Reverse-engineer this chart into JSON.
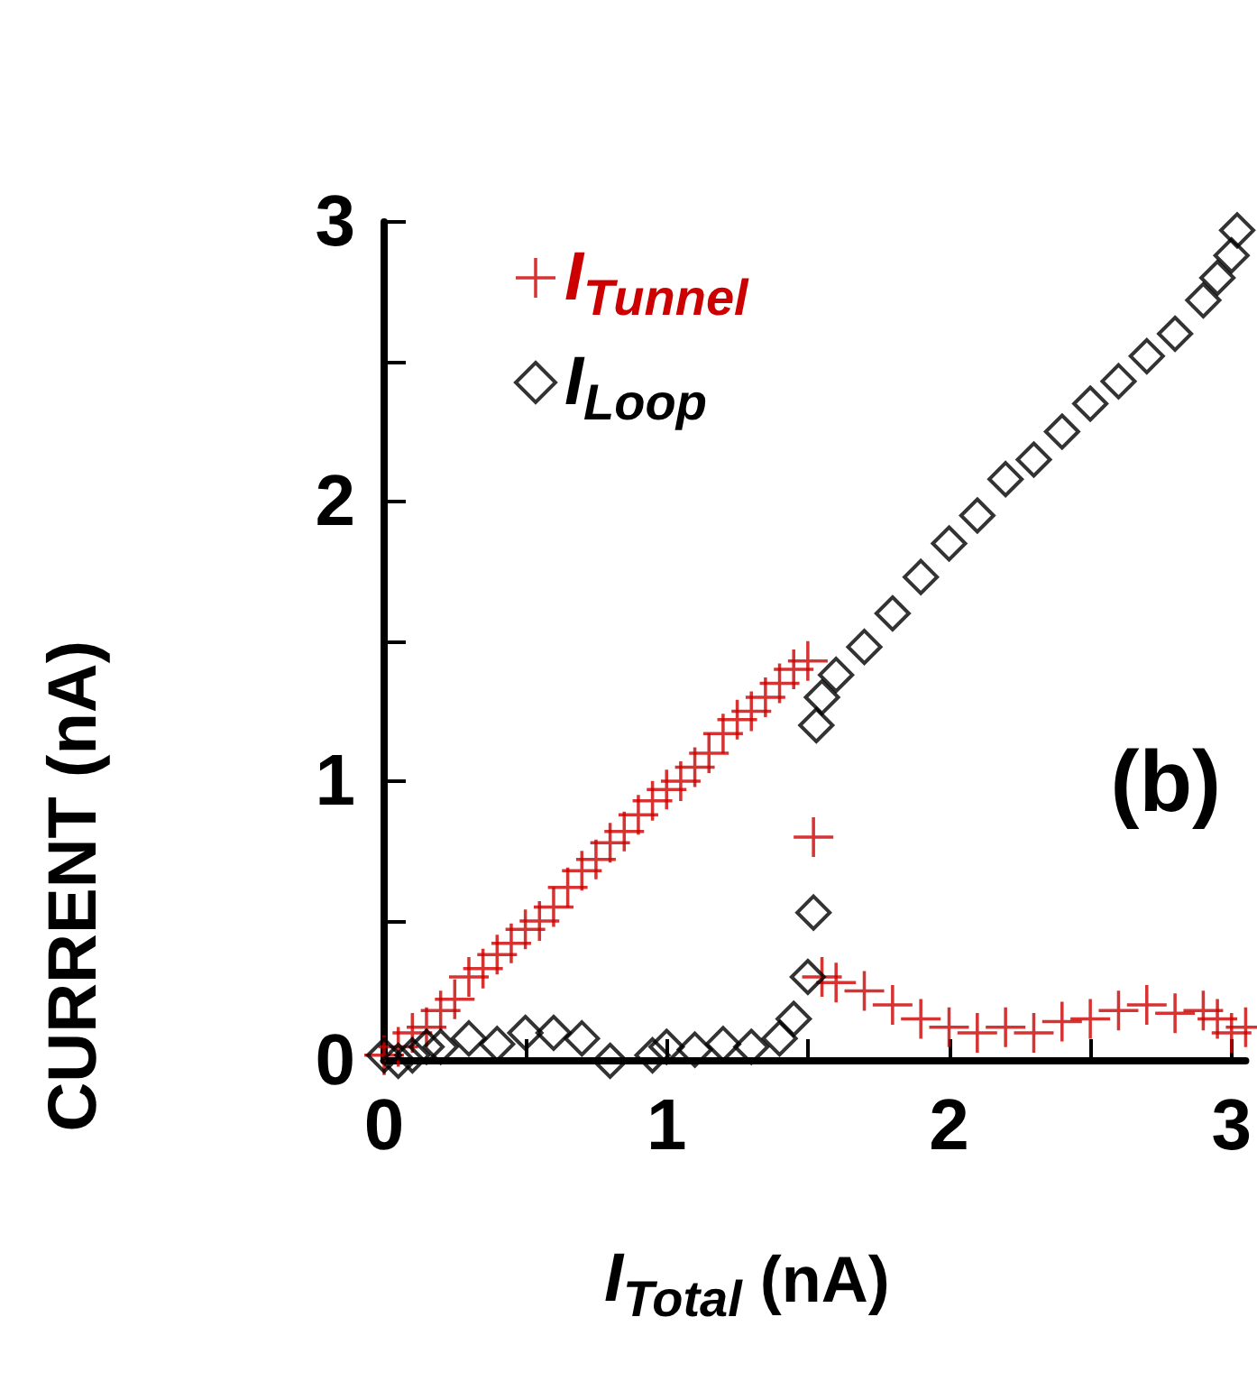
{
  "chart_data": {
    "type": "scatter",
    "xlabel": "I$_{Total}$ (nA)",
    "ylabel": "CURRENT (nA)",
    "annotations": [
      "(b)"
    ],
    "xlim": [
      0,
      3.05
    ],
    "xticks": [
      0,
      {
        "value": 0.5,
        "label": null
      },
      1,
      {
        "value": 1.5,
        "label": null
      },
      2,
      {
        "value": 2.5,
        "label": null
      },
      3
    ],
    "ylim": [
      0,
      3
    ],
    "yticks": [
      0,
      {
        "value": 0.5,
        "label": null
      },
      1,
      {
        "value": 1.5,
        "label": null
      },
      2,
      {
        "value": 2.5,
        "label": null
      },
      3
    ],
    "grid": false,
    "legend": "top left",
    "series": [
      {
        "name": "I$_{Tunnel}$",
        "color": "#cc0000",
        "marker": "cross",
        "x": [
          0,
          0.05,
          0.1,
          0.15,
          0.2,
          0.25,
          0.3,
          0.35,
          0.4,
          0.45,
          0.5,
          0.55,
          0.6,
          0.65,
          0.7,
          0.75,
          0.8,
          0.85,
          0.9,
          0.95,
          1.0,
          1.05,
          1.1,
          1.15,
          1.2,
          1.25,
          1.3,
          1.35,
          1.4,
          1.45,
          1.5,
          1.52,
          1.55,
          1.6,
          1.7,
          1.8,
          1.9,
          2.0,
          2.1,
          2.2,
          2.3,
          2.4,
          2.5,
          2.6,
          2.7,
          2.8,
          2.9,
          2.95,
          3.0,
          3.05
        ],
        "values": [
          0.02,
          0.05,
          0.1,
          0.12,
          0.18,
          0.22,
          0.3,
          0.33,
          0.38,
          0.42,
          0.47,
          0.5,
          0.55,
          0.62,
          0.68,
          0.72,
          0.78,
          0.82,
          0.88,
          0.93,
          0.97,
          1.0,
          1.05,
          1.1,
          1.17,
          1.22,
          1.25,
          1.3,
          1.35,
          1.4,
          1.43,
          0.8,
          0.3,
          0.28,
          0.25,
          0.2,
          0.15,
          0.12,
          0.1,
          0.12,
          0.1,
          0.14,
          0.15,
          0.18,
          0.2,
          0.17,
          0.18,
          0.15,
          0.1,
          0.12
        ]
      },
      {
        "name": "I$_{Loop}$",
        "color": "#000000",
        "marker": "diamond",
        "x": [
          0,
          0.05,
          0.1,
          0.15,
          0.2,
          0.3,
          0.4,
          0.5,
          0.6,
          0.7,
          0.8,
          0.95,
          1.0,
          1.1,
          1.2,
          1.3,
          1.4,
          1.45,
          1.5,
          1.52,
          1.53,
          1.55,
          1.6,
          1.7,
          1.8,
          1.9,
          2.0,
          2.1,
          2.2,
          2.3,
          2.4,
          2.5,
          2.6,
          2.7,
          2.8,
          2.9,
          2.95,
          3.0,
          3.02
        ],
        "values": [
          0.02,
          0.0,
          0.02,
          0.05,
          0.05,
          0.08,
          0.06,
          0.1,
          0.1,
          0.08,
          0.0,
          0.02,
          0.05,
          0.04,
          0.06,
          0.05,
          0.08,
          0.15,
          0.3,
          0.53,
          1.2,
          1.3,
          1.38,
          1.48,
          1.6,
          1.73,
          1.85,
          1.95,
          2.08,
          2.15,
          2.25,
          2.35,
          2.43,
          2.52,
          2.6,
          2.72,
          2.8,
          2.88,
          2.97
        ]
      }
    ]
  }
}
